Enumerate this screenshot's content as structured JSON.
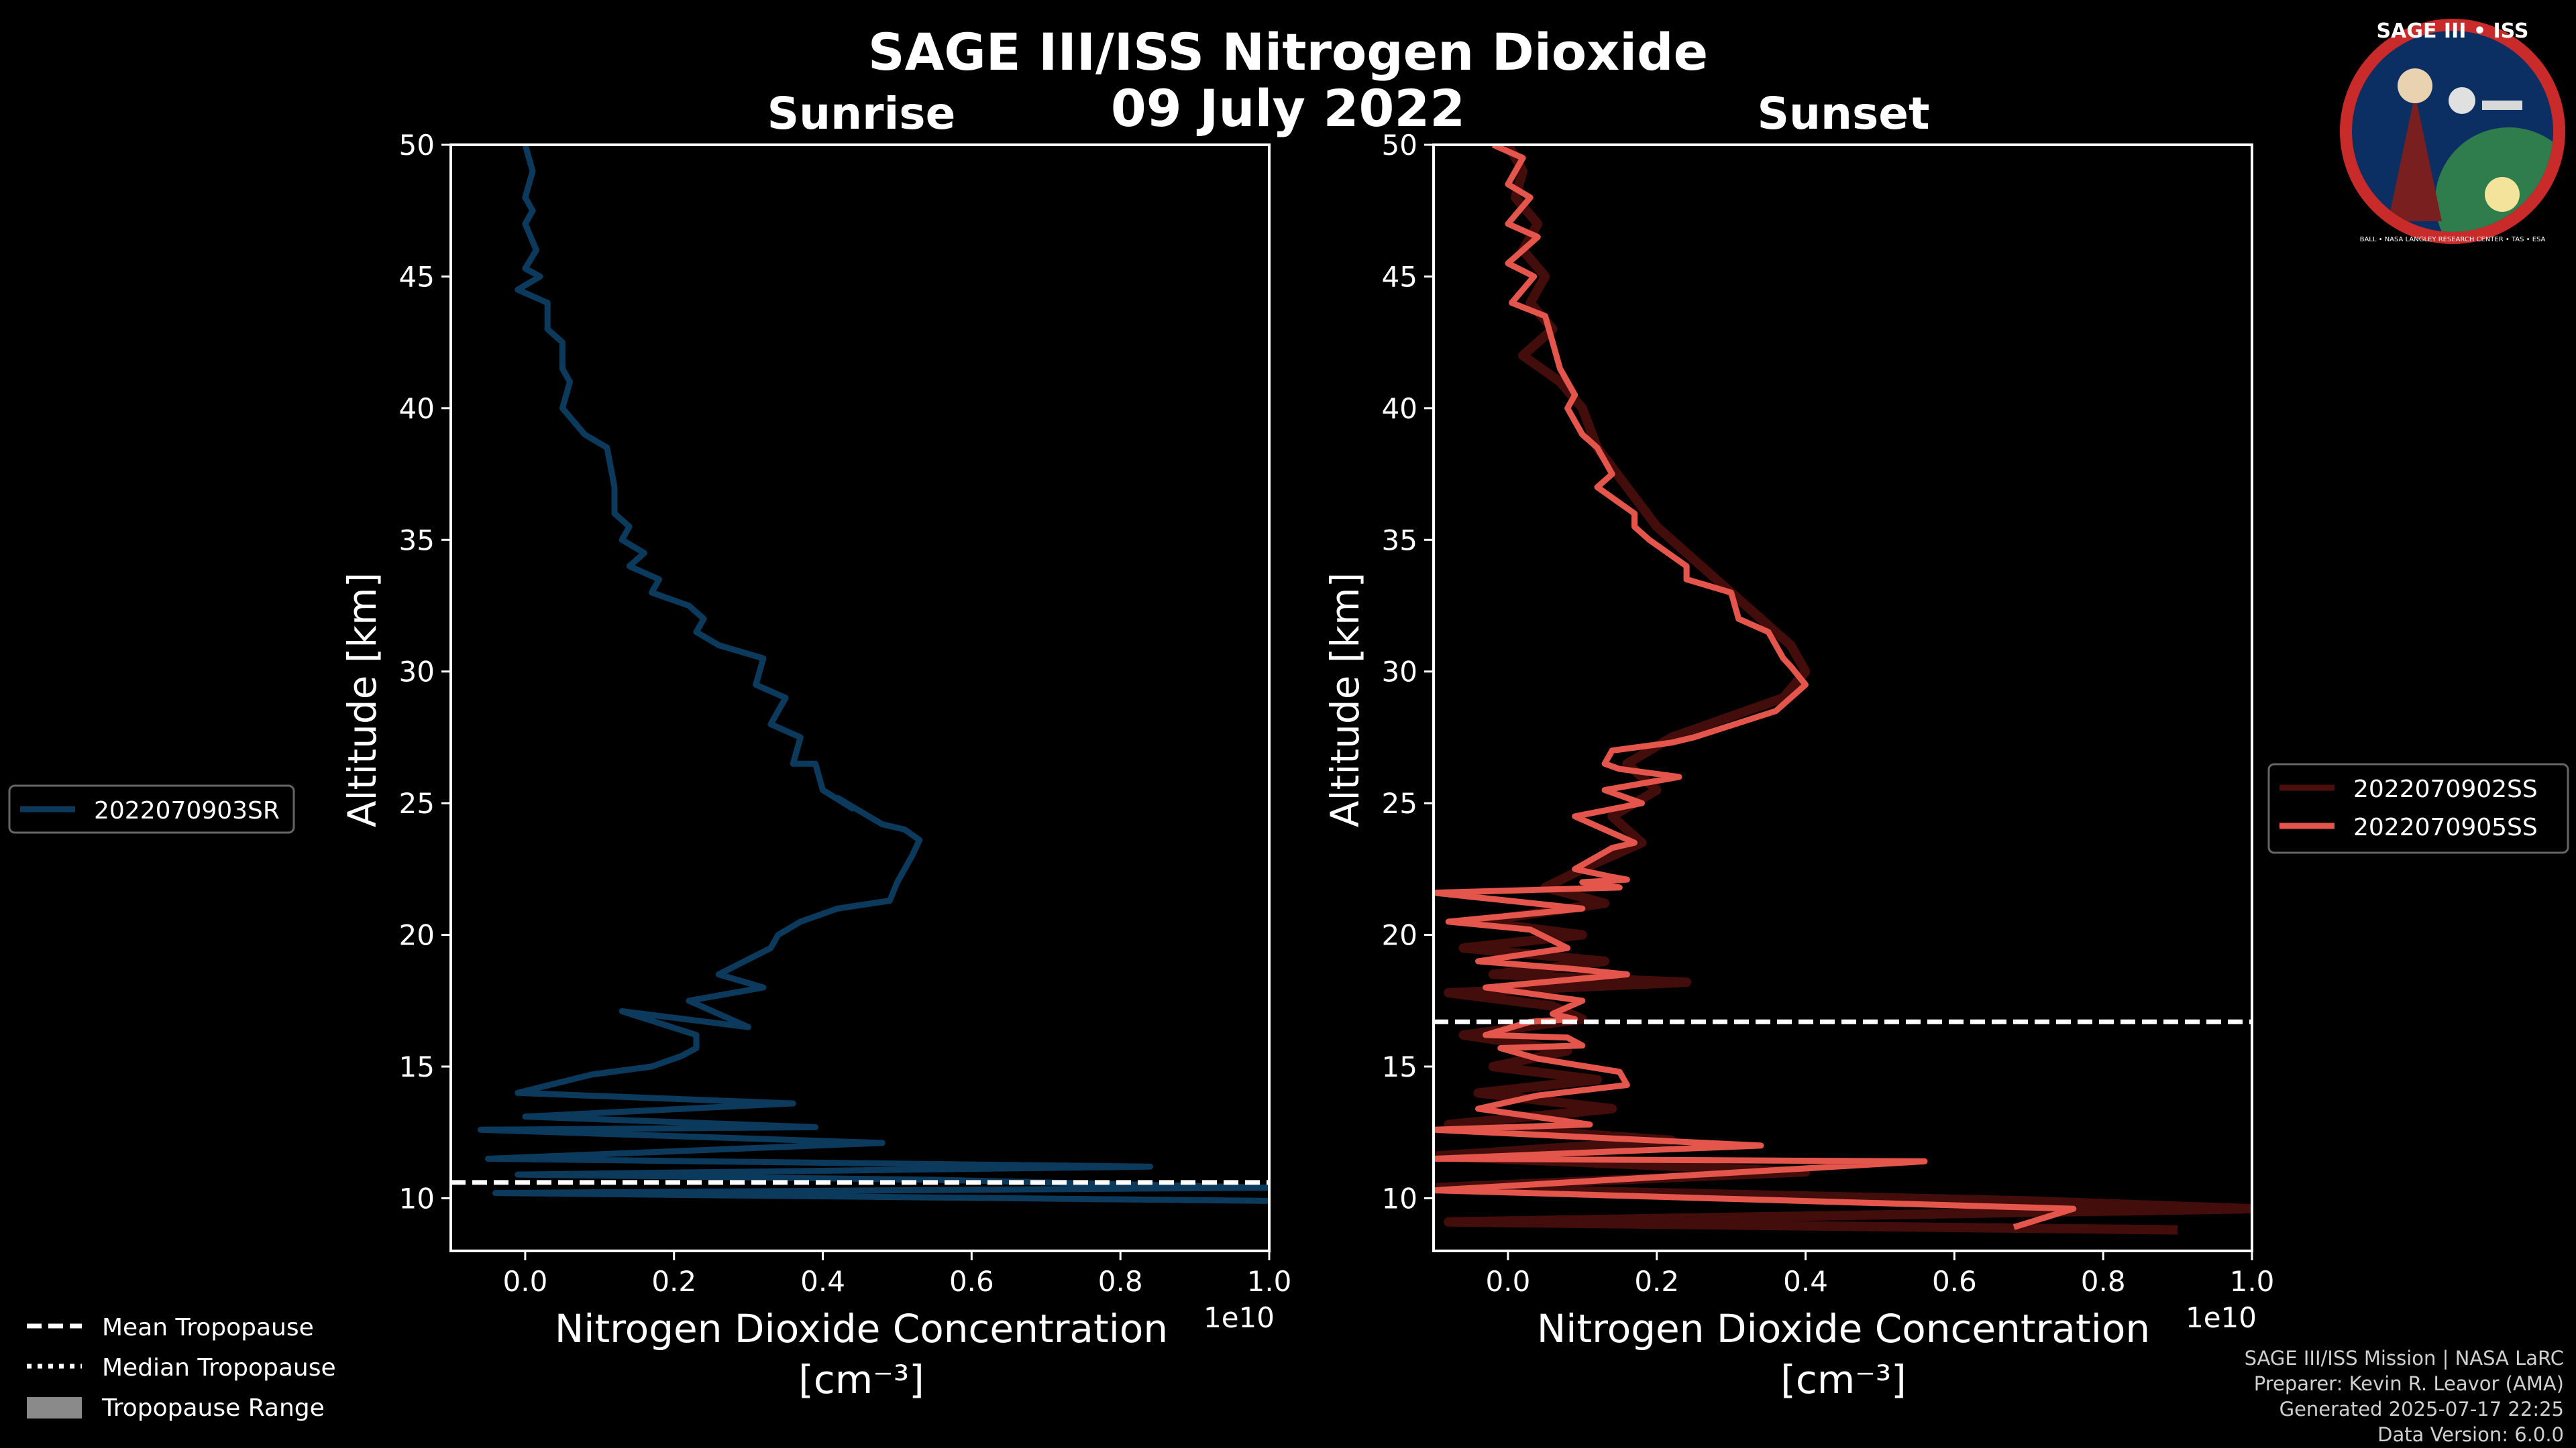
{
  "title": "SAGE III/ISS Nitrogen Dioxide",
  "date": "09 July 2022",
  "logo": {
    "text_top": "SAGE III • ISS",
    "text_ring": "BALL • NASA LANGLEY RESEARCH CENTER • TAS • ESA"
  },
  "colors": {
    "sunrise": "#0b3a5c",
    "sunset": "#e4554b",
    "sunset_faint": "#4a0e0c",
    "background": "#000000",
    "foreground": "#ffffff"
  },
  "tropopause_legend": [
    "Mean Tropopause",
    "Median Tropopause",
    "Tropopause Range"
  ],
  "footer": [
    "SAGE III/ISS Mission | NASA LaRC",
    "Preparer: Kevin R. Leavor (AMA)",
    "Generated 2025-07-17 22:25",
    "Data Version: 6.0.0"
  ],
  "chart_data": [
    {
      "type": "line",
      "title": "Sunrise",
      "xlabel": "Nitrogen Dioxide Concentration",
      "xunit": "[cm⁻³]",
      "ylabel": "Altitude [km]",
      "xlim": [
        -0.1,
        1.0
      ],
      "ylim": [
        8,
        50
      ],
      "x_offset_label": "1e10",
      "xticks": [
        0.0,
        0.2,
        0.4,
        0.6,
        0.8,
        1.0
      ],
      "xtick_labels": [
        "0.0",
        "0.2",
        "0.4",
        "0.6",
        "0.8",
        "1.0"
      ],
      "yticks": [
        10,
        15,
        20,
        25,
        30,
        35,
        40,
        45,
        50
      ],
      "legend": [
        "2022070903SR"
      ],
      "mean_tropopause_km": 10.6,
      "series": [
        {
          "name": "2022070903SR",
          "x": [
            0.0,
            0.01,
            0.0,
            0.01,
            0.0,
            0.015,
            0.0,
            0.02,
            -0.01,
            0.03,
            0.03,
            0.05,
            0.05,
            0.06,
            0.05,
            0.08,
            0.11,
            0.12,
            0.12,
            0.14,
            0.13,
            0.16,
            0.14,
            0.18,
            0.17,
            0.22,
            0.24,
            0.23,
            0.26,
            0.32,
            0.31,
            0.35,
            0.33,
            0.37,
            0.36,
            0.39,
            0.4,
            0.44,
            0.42,
            0.48,
            0.51,
            0.53,
            0.52,
            0.5,
            0.49,
            0.42,
            0.37,
            0.34,
            0.33,
            0.26,
            0.32,
            0.22,
            0.3,
            0.13,
            0.23,
            0.23,
            0.21,
            0.17,
            0.09,
            -0.01,
            0.36,
            0.0,
            0.39,
            -0.06,
            0.48,
            -0.05,
            0.84,
            -0.01,
            0.55,
            1.0,
            -0.04,
            1.0
          ],
          "y": [
            50,
            49,
            48,
            47.5,
            47,
            46,
            45.3,
            45,
            44.5,
            44,
            43,
            42.5,
            41.5,
            41,
            40,
            39,
            38.5,
            37,
            36,
            35.5,
            35,
            34.5,
            34,
            33.5,
            33,
            32.5,
            32,
            31.5,
            31,
            30.5,
            29.5,
            29,
            28,
            27.5,
            26.5,
            26.5,
            25.5,
            24.8,
            25.2,
            24.2,
            24,
            23.6,
            23,
            22,
            21.3,
            21,
            20.5,
            20,
            19.5,
            18.5,
            18,
            17.5,
            16.5,
            17.1,
            16.2,
            15.7,
            15.4,
            15.0,
            14.7,
            14.0,
            13.6,
            13.1,
            12.7,
            12.6,
            12.1,
            11.5,
            11.2,
            10.9,
            10.7,
            10.4,
            10.2,
            9.9
          ]
        }
      ]
    },
    {
      "type": "line",
      "title": "Sunset",
      "xlabel": "Nitrogen Dioxide Concentration",
      "xunit": "[cm⁻³]",
      "ylabel": "Altitude [km]",
      "xlim": [
        -0.1,
        1.0
      ],
      "ylim": [
        8,
        50
      ],
      "x_offset_label": "1e10",
      "xticks": [
        0.0,
        0.2,
        0.4,
        0.6,
        0.8,
        1.0
      ],
      "xtick_labels": [
        "0.0",
        "0.2",
        "0.4",
        "0.6",
        "0.8",
        "1.0"
      ],
      "yticks": [
        10,
        15,
        20,
        25,
        30,
        35,
        40,
        45,
        50
      ],
      "legend": [
        "2022070902SS",
        "2022070905SS"
      ],
      "mean_tropopause_km": 16.7,
      "series": [
        {
          "name": "2022070902SS",
          "x": [
            0.0,
            0.02,
            0.01,
            0.04,
            0.02,
            0.05,
            0.03,
            0.06,
            0.02,
            0.07,
            0.1,
            0.12,
            0.16,
            0.2,
            0.26,
            0.3,
            0.34,
            0.38,
            0.4,
            0.37,
            0.3,
            0.22,
            0.16,
            0.2,
            0.14,
            0.18,
            0.1,
            0.05,
            0.13,
            -0.04,
            0.1,
            -0.06,
            0.13,
            -0.02,
            0.24,
            -0.08,
            0.06,
            0.1,
            -0.06,
            0.08,
            -0.02,
            0.12,
            -0.04,
            0.14,
            -0.08,
            0.22,
            -0.1,
            0.4,
            -0.1,
            0.7,
            1.0,
            -0.08,
            0.9
          ],
          "y": [
            50,
            49,
            48,
            47,
            46,
            45,
            44,
            43,
            42,
            41,
            40,
            38.5,
            37,
            35.5,
            34,
            33,
            32,
            31,
            30,
            29,
            28.3,
            27.5,
            26.5,
            25.5,
            24.5,
            23.5,
            22.5,
            21.8,
            21.2,
            20.5,
            20.0,
            19.5,
            19.0,
            18.5,
            18.2,
            17.8,
            17.3,
            16.8,
            16.2,
            15.6,
            15.0,
            14.5,
            14.0,
            13.4,
            12.8,
            12.2,
            11.6,
            11.0,
            10.4,
            9.9,
            9.6,
            9.1,
            8.8
          ]
        },
        {
          "name": "2022070905SS",
          "x": [
            -0.02,
            0.02,
            0.0,
            0.03,
            0.0,
            0.04,
            0.0,
            0.035,
            0.005,
            0.05,
            0.06,
            0.07,
            0.09,
            0.08,
            0.1,
            0.12,
            0.14,
            0.12,
            0.17,
            0.17,
            0.19,
            0.24,
            0.24,
            0.3,
            0.31,
            0.35,
            0.37,
            0.38,
            0.4,
            0.38,
            0.36,
            0.25,
            0.22,
            0.14,
            0.13,
            0.15,
            0.23,
            0.13,
            0.18,
            0.09,
            0.17,
            0.14,
            0.09,
            0.14,
            0.16,
            0.1,
            0.15,
            -0.1,
            0.1,
            -0.08,
            0.03,
            0.08,
            -0.04,
            0.09,
            0.16,
            -0.03,
            0.1,
            0.06,
            0.09,
            0.03,
            -0.03,
            0.08,
            0.1,
            -0.01,
            0.04,
            0.15,
            0.16,
            0.04,
            -0.04,
            0.11,
            -0.1,
            0.34,
            -0.1,
            0.56,
            -0.1,
            0.76,
            0.68
          ],
          "y": [
            50,
            49.5,
            48.5,
            48,
            47,
            46.5,
            45.5,
            45,
            44,
            43.5,
            42.5,
            41.5,
            40.5,
            40,
            39,
            38.5,
            37.5,
            37,
            36,
            35.5,
            35,
            34,
            33.5,
            33,
            32,
            31.5,
            30.5,
            30.2,
            29.5,
            29,
            28.5,
            27.5,
            27.3,
            27,
            26.5,
            26.3,
            26,
            25.5,
            25,
            24.5,
            23.5,
            23.3,
            22.5,
            22.2,
            22.1,
            22.0,
            21.8,
            21.6,
            21.0,
            20.5,
            20.2,
            19.5,
            19.0,
            18.7,
            18.5,
            18.0,
            17.5,
            17.0,
            16.8,
            16.7,
            16.2,
            16.1,
            15.8,
            15.7,
            15.3,
            14.8,
            14.3,
            13.9,
            13.4,
            12.8,
            12.6,
            12.0,
            11.5,
            11.4,
            10.3,
            9.6,
            8.9
          ]
        }
      ]
    }
  ]
}
